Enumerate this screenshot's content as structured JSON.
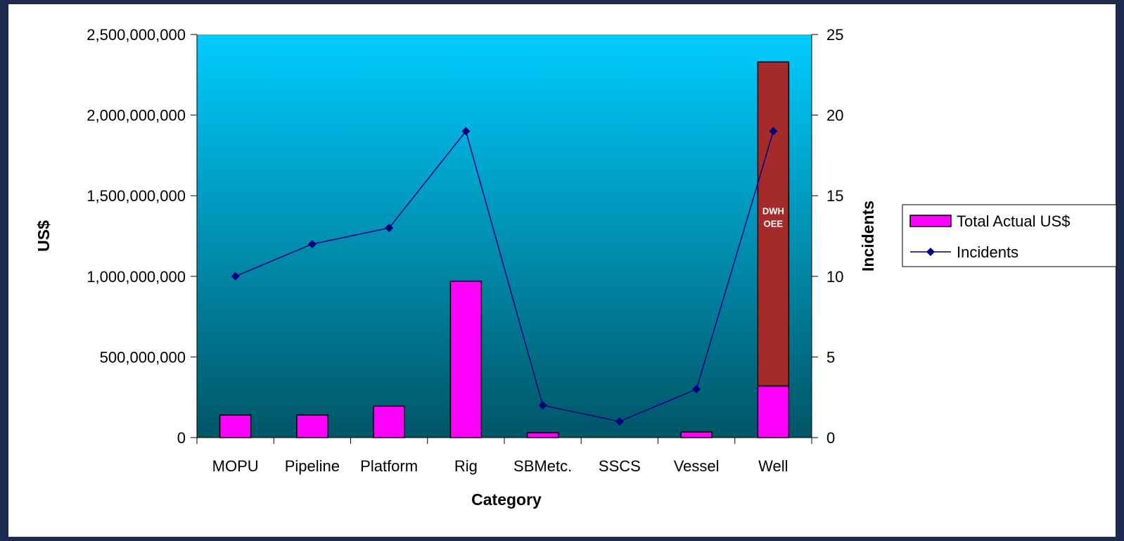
{
  "chart_data": {
    "type": "bar",
    "categories": [
      "MOPU",
      "Pipeline",
      "Platform",
      "Rig",
      "SBMetc.",
      "SSCS",
      "Vessel",
      "Well"
    ],
    "series": [
      {
        "name": "Total Actual US$",
        "type": "bar",
        "axis": "left",
        "values": [
          140000000,
          140000000,
          195000000,
          970000000,
          30000000,
          0,
          35000000,
          320000000
        ]
      },
      {
        "name": "Incidents",
        "type": "line",
        "axis": "right",
        "values": [
          10,
          12,
          13,
          19,
          2,
          1,
          3,
          19
        ]
      }
    ],
    "highlight": {
      "category": "Well",
      "label_lines": [
        "DWH",
        "OEE"
      ],
      "from": 320000000,
      "to": 2330000000,
      "color": "#a52a2a"
    },
    "xlabel": "Category",
    "ylabel": "US$",
    "y2label": "Incidents",
    "ylim": [
      0,
      2500000000
    ],
    "y2lim": [
      0,
      25
    ],
    "yticks": [
      0,
      500000000,
      1000000000,
      1500000000,
      2000000000,
      2500000000
    ],
    "ytick_labels": [
      "0",
      "500,000,000",
      "1,000,000,000",
      "1,500,000,000",
      "2,000,000,000",
      "2,500,000,000"
    ],
    "y2ticks": [
      0,
      5,
      10,
      15,
      20,
      25
    ],
    "y2tick_labels": [
      "0",
      "5",
      "10",
      "15",
      "20",
      "25"
    ],
    "legend": {
      "position": "right",
      "entries": [
        "Total Actual US$",
        "Incidents"
      ]
    },
    "grid": false,
    "colors": {
      "bar": "#ff00ff",
      "line": "#000080",
      "plot_top": "#00ccff",
      "plot_bottom": "#005566",
      "frame": "#1b2a4e"
    }
  }
}
